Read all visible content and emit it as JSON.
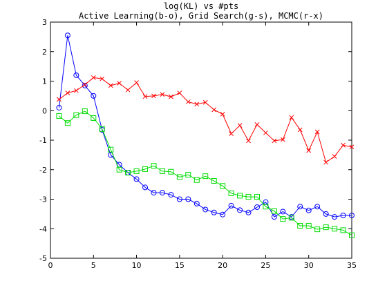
{
  "chart_data": {
    "type": "line",
    "title": "log(KL) vs #pts",
    "subtitle": "Active Learning(b-o), Grid Search(g-s), MCMC(r-x)",
    "xlabel": "",
    "ylabel": "",
    "xlim": [
      0,
      35
    ],
    "ylim": [
      -5,
      3
    ],
    "xticks": [
      0,
      5,
      10,
      15,
      20,
      25,
      30,
      35
    ],
    "yticks": [
      -5,
      -4,
      -3,
      -2,
      -1,
      0,
      1,
      2,
      3
    ],
    "grid": false,
    "legend": "none",
    "series": [
      {
        "color": "#0000ff",
        "marker": "circle",
        "x": [
          1,
          2,
          3,
          4,
          5,
          6,
          7,
          8,
          9,
          10,
          11,
          12,
          13,
          14,
          15,
          16,
          17,
          18,
          19,
          20,
          21,
          22,
          23,
          24,
          25,
          26,
          27,
          28,
          29,
          30,
          31,
          32,
          33,
          34,
          35
        ],
        "y": [
          0.1,
          2.55,
          1.2,
          0.85,
          0.5,
          -0.65,
          -1.5,
          -1.83,
          -2.1,
          -2.32,
          -2.6,
          -2.78,
          -2.78,
          -2.85,
          -3.0,
          -3.0,
          -3.15,
          -3.35,
          -3.45,
          -3.52,
          -3.22,
          -3.37,
          -3.45,
          -3.27,
          -3.1,
          -3.6,
          -3.42,
          -3.6,
          -3.25,
          -3.38,
          -3.25,
          -3.5,
          -3.6,
          -3.55,
          -3.55
        ]
      },
      {
        "color": "#00dd00",
        "marker": "square",
        "x": [
          1,
          2,
          3,
          4,
          5,
          6,
          7,
          8,
          9,
          10,
          11,
          12,
          13,
          14,
          15,
          16,
          17,
          18,
          19,
          20,
          21,
          22,
          23,
          24,
          25,
          26,
          27,
          28,
          29,
          30,
          31,
          32,
          33,
          34,
          35
        ],
        "y": [
          -0.18,
          -0.42,
          -0.15,
          -0.02,
          -0.25,
          -0.62,
          -1.32,
          -2.0,
          -2.1,
          -2.05,
          -1.98,
          -1.87,
          -2.05,
          -2.07,
          -2.25,
          -2.17,
          -2.35,
          -2.22,
          -2.38,
          -2.55,
          -2.8,
          -2.88,
          -2.92,
          -2.92,
          -3.25,
          -3.4,
          -3.67,
          -3.63,
          -3.9,
          -3.9,
          -4.02,
          -3.95,
          -4.0,
          -4.05,
          -4.22
        ]
      },
      {
        "color": "#ff0000",
        "marker": "x",
        "x": [
          1,
          2,
          3,
          4,
          5,
          6,
          7,
          8,
          9,
          10,
          11,
          12,
          13,
          14,
          15,
          16,
          17,
          18,
          19,
          20,
          21,
          22,
          23,
          24,
          25,
          26,
          27,
          28,
          29,
          30,
          31,
          32,
          33,
          34,
          35
        ],
        "y": [
          0.38,
          0.6,
          0.68,
          0.88,
          1.12,
          1.08,
          0.85,
          0.93,
          0.7,
          0.95,
          0.48,
          0.5,
          0.55,
          0.47,
          0.6,
          0.3,
          0.22,
          0.28,
          0.03,
          -0.12,
          -0.78,
          -0.5,
          -1.02,
          -0.47,
          -0.75,
          -1.02,
          -0.98,
          -0.23,
          -0.65,
          -1.35,
          -0.72,
          -1.75,
          -1.55,
          -1.17,
          -1.23
        ]
      }
    ]
  }
}
